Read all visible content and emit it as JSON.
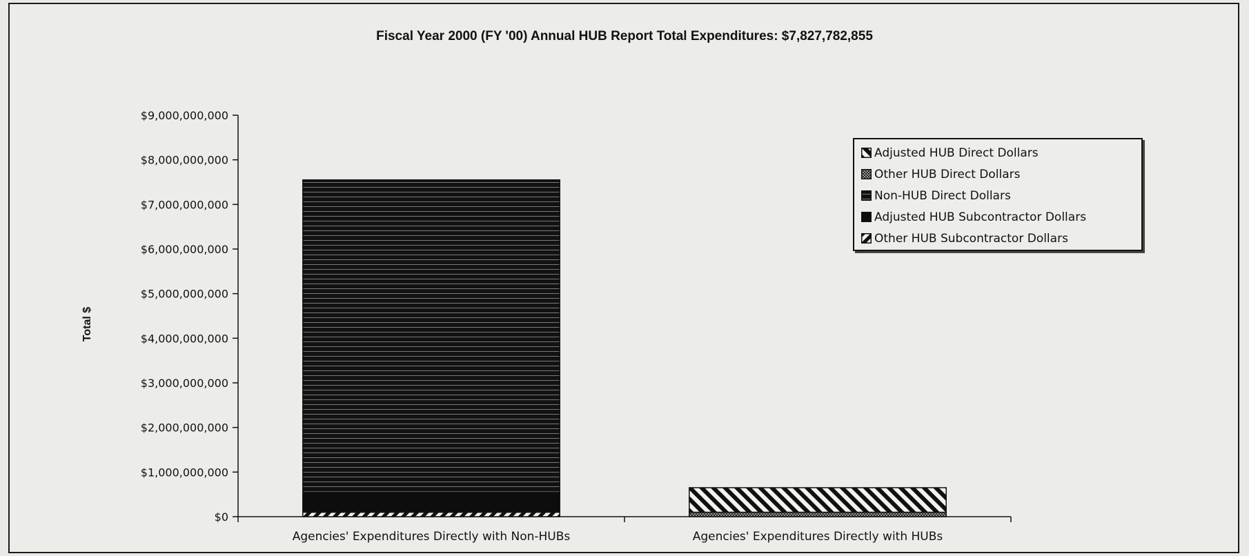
{
  "chart_data": {
    "type": "bar",
    "stacked": true,
    "title": "Fiscal Year 2000 (FY '00) Annual HUB Report Total Expenditures:  $7,827,782,855",
    "ylabel": "Total $",
    "xlabel": "",
    "ylim": [
      0,
      9000000000
    ],
    "y_ticks": [
      "$0",
      "$1,000,000,000",
      "$2,000,000,000",
      "$3,000,000,000",
      "$4,000,000,000",
      "$5,000,000,000",
      "$6,000,000,000",
      "$7,000,000,000",
      "$8,000,000,000",
      "$9,000,000,000"
    ],
    "y_tick_values": [
      0,
      1000000000,
      2000000000,
      3000000000,
      4000000000,
      5000000000,
      6000000000,
      7000000000,
      8000000000,
      9000000000
    ],
    "categories": [
      "Agencies' Expenditures Directly with Non-HUBs",
      "Agencies' Expenditures Directly with HUBs"
    ],
    "grid": false,
    "legend_position": "top-right",
    "series": [
      {
        "name": "Adjusted HUB Direct Dollars",
        "values": [
          0,
          550000000
        ],
        "pattern": "diagonal-hatch"
      },
      {
        "name": "Other HUB Direct Dollars",
        "values": [
          0,
          100000000
        ],
        "pattern": "stipple"
      },
      {
        "name": "Non-HUB Direct Dollars",
        "values": [
          7000000000,
          0
        ],
        "pattern": "dark-horizontal-lines"
      },
      {
        "name": "Adjusted HUB Subcontractor Dollars",
        "values": [
          450000000,
          0
        ],
        "pattern": "solid-dark"
      },
      {
        "name": "Other HUB Subcontractor Dollars",
        "values": [
          100000000,
          0
        ],
        "pattern": "reverse-diagonal-hatch"
      }
    ],
    "colors": {
      "ink": "#111111",
      "background": "#ecece9"
    }
  }
}
